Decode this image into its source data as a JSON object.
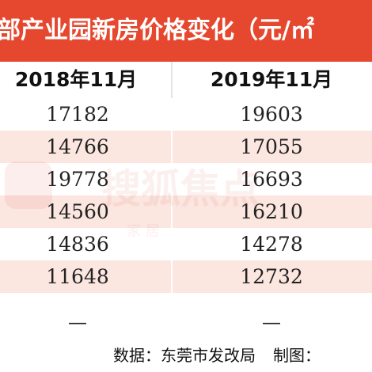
{
  "title": "部产业园新房价格变化（元/㎡",
  "table": {
    "headers": [
      "2018年11月",
      "2019年11月"
    ],
    "rows": [
      [
        "17182",
        "19603"
      ],
      [
        "14766",
        "17055"
      ],
      [
        "19778",
        "16693"
      ],
      [
        "14560",
        "16210"
      ],
      [
        "14836",
        "14278"
      ],
      [
        "11648",
        "12732"
      ]
    ],
    "last_row": [
      "—",
      "—"
    ]
  },
  "footer": {
    "source": "数据：东莞市发改局",
    "credit": "制图："
  },
  "watermark": {
    "text": "搜狐焦点",
    "sub": "家 居"
  },
  "colors": {
    "title_bg": "#e6482f",
    "stripe": "#fbe6e0"
  }
}
